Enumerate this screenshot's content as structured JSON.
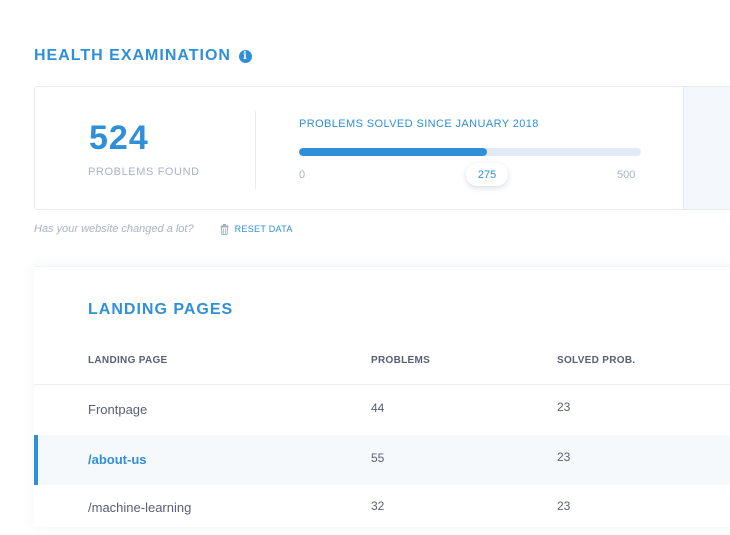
{
  "header": {
    "title": "HEALTH EXAMINATION",
    "info_icon": "info-icon"
  },
  "summary": {
    "problems_found": "524",
    "problems_found_label": "PROBLEMS FOUND",
    "progress": {
      "title": "PROBLEMS SOLVED SINCE JANUARY 2018",
      "min": "0",
      "max": "500",
      "value": "275",
      "value_number": 275,
      "max_number": 500
    }
  },
  "changed": {
    "question": "Has your website changed a lot?",
    "reset_label": "RESET DATA",
    "reset_icon": "trash-icon"
  },
  "landing_pages": {
    "title": "LANDING PAGES",
    "columns": [
      "LANDING PAGE",
      "PROBLEMS",
      "SOLVED PROB."
    ],
    "rows": [
      {
        "page": "Frontpage",
        "problems": "44",
        "solved": "23"
      },
      {
        "page": "/about-us",
        "problems": "55",
        "solved": "23"
      },
      {
        "page": "/machine-learning",
        "problems": "32",
        "solved": "23"
      }
    ]
  },
  "colors": {
    "accent": "#2f8fd8",
    "muted": "#a9b4c2",
    "text": "#5a6072"
  }
}
